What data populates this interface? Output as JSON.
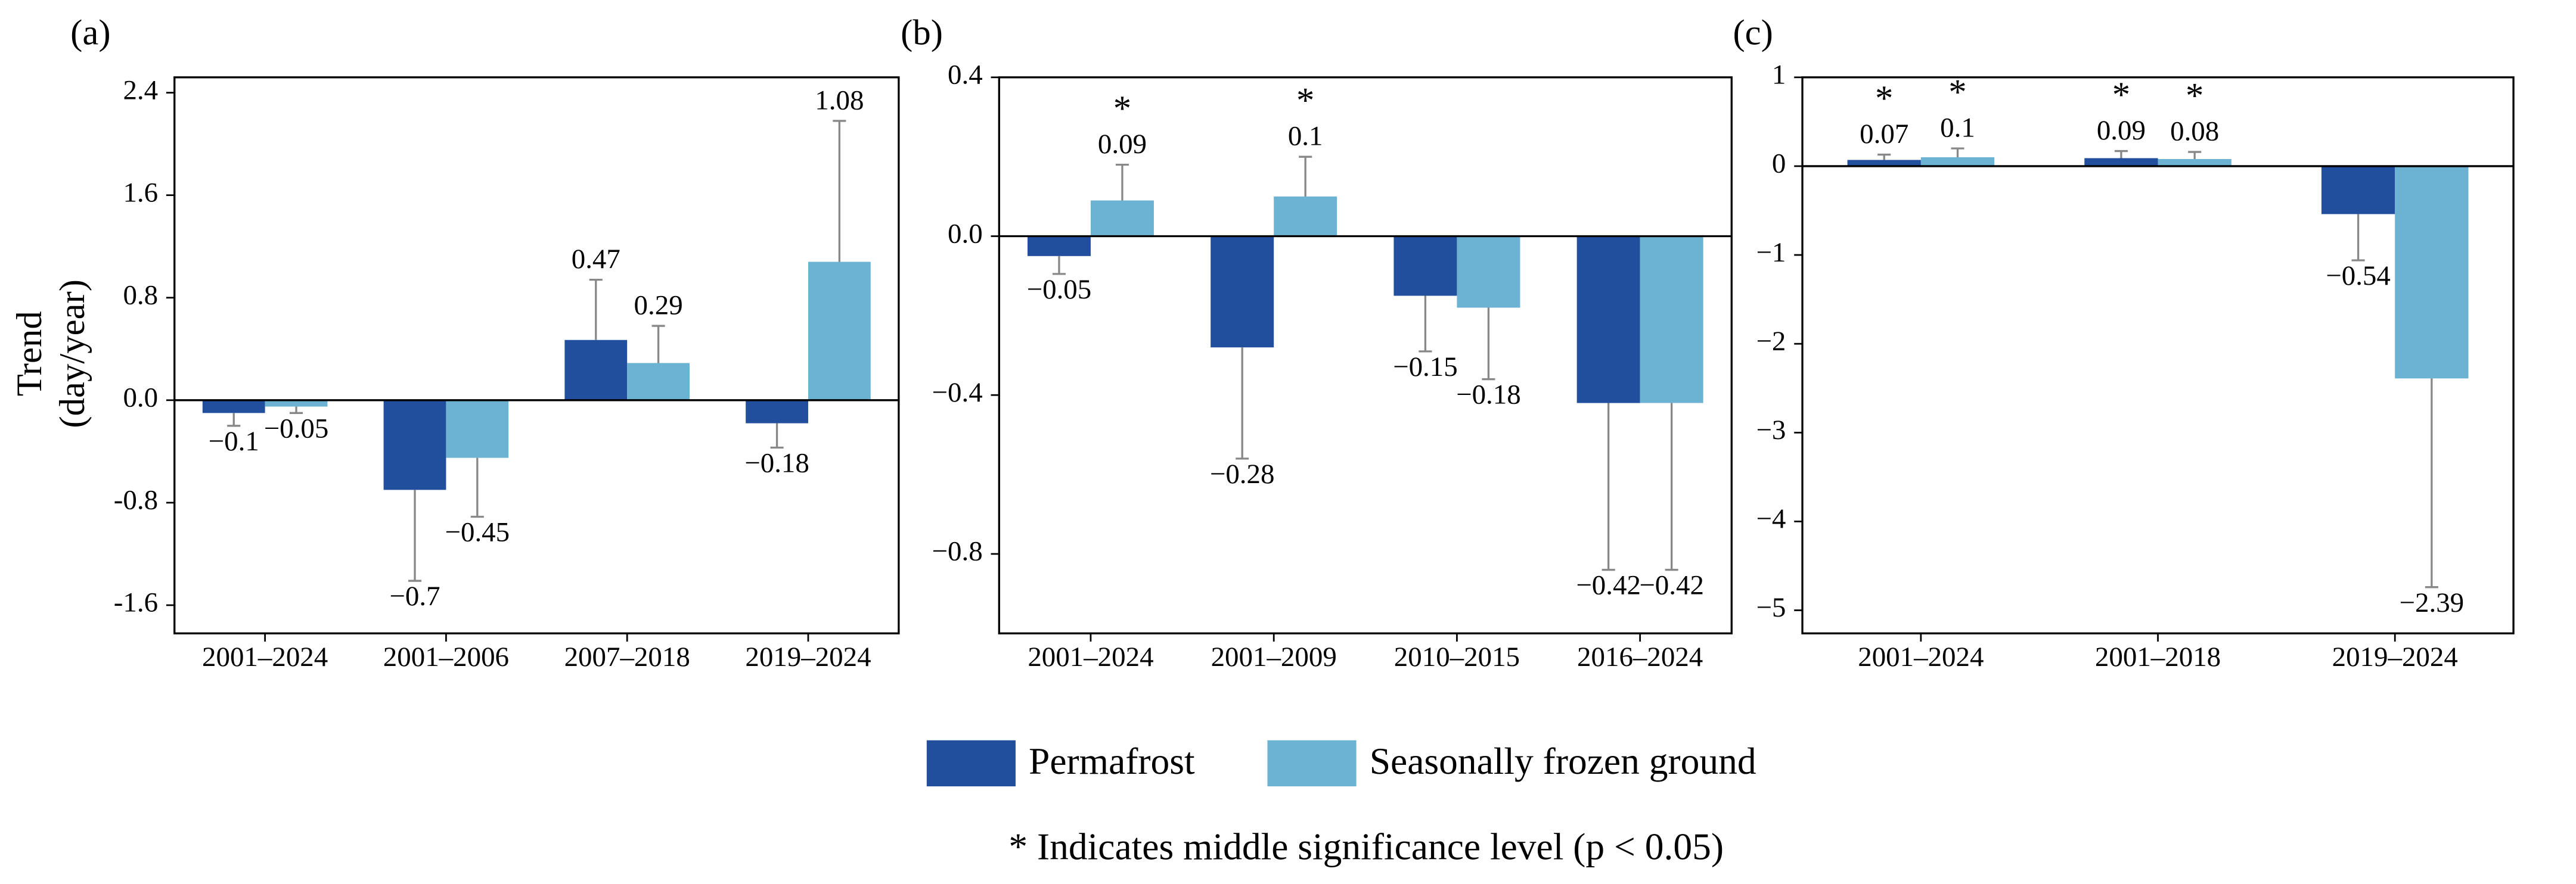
{
  "chart_data": [
    {
      "type": "bar",
      "panel_label": "(a)",
      "y_label": [
        "Trend",
        "(day/year)"
      ],
      "categories": [
        "2001–2024",
        "2001–2006",
        "2007–2018",
        "2019–2024"
      ],
      "ylim": [
        -1.82,
        2.52
      ],
      "yticks": [
        {
          "value": -1.6,
          "label": "-1.6"
        },
        {
          "value": -0.8,
          "label": "-0.8"
        },
        {
          "value": 0,
          "label": "0.0"
        },
        0.8,
        1.6,
        2.4
      ],
      "series": [
        {
          "name": "Permafrost",
          "color": "#214f9e",
          "values": [
            -0.1,
            -0.7,
            0.47,
            -0.18
          ],
          "errors": [
            0.1,
            0.71,
            0.47,
            0.19
          ],
          "value_labels": [
            "−0.1",
            "−0.7",
            "0.47",
            "−0.18"
          ],
          "significance_marks": [
            null,
            null,
            null,
            null
          ]
        },
        {
          "name": "Seasonally frozen ground",
          "color": "#6cb3d3",
          "values": [
            -0.05,
            -0.45,
            0.29,
            1.08
          ],
          "errors": [
            0.05,
            0.46,
            0.29,
            1.1
          ],
          "value_labels": [
            "−0.05",
            "−0.45",
            "0.29",
            "1.08"
          ],
          "significance_marks": [
            null,
            null,
            null,
            null
          ]
        }
      ]
    },
    {
      "type": "bar",
      "panel_label": "(b)",
      "categories": [
        "2001–2024",
        "2001–2009",
        "2010–2015",
        "2016–2024"
      ],
      "ylim": [
        -1.0,
        0.4
      ],
      "yticks": [
        {
          "value": -0.8,
          "label": "−0.8"
        },
        {
          "value": -0.4,
          "label": "−0.4"
        },
        {
          "value": 0,
          "label": "0.0"
        },
        0.4
      ],
      "series": [
        {
          "name": "Permafrost",
          "color": "#214f9e",
          "values": [
            -0.05,
            -0.28,
            -0.15,
            -0.42
          ],
          "errors": [
            0.045,
            0.28,
            0.14,
            0.42
          ],
          "value_labels": [
            "−0.05",
            "−0.28",
            "−0.15",
            "−0.42"
          ],
          "significance_marks": [
            null,
            null,
            null,
            null
          ]
        },
        {
          "name": "Seasonally frozen ground",
          "color": "#6cb3d3",
          "values": [
            0.09,
            0.1,
            -0.18,
            -0.42
          ],
          "errors": [
            0.09,
            0.1,
            0.18,
            0.42
          ],
          "value_labels": [
            "0.09",
            "0.1",
            "−0.18",
            "−0.42"
          ],
          "significance_marks": [
            "*",
            "*",
            null,
            null
          ]
        }
      ]
    },
    {
      "type": "bar",
      "panel_label": "(c)",
      "categories": [
        "2001–2024",
        "2001–2018",
        "2019–2024"
      ],
      "ylim": [
        -5.26,
        1
      ],
      "yticks": [
        {
          "value": -5,
          "label": "−5"
        },
        {
          "value": -4,
          "label": "−4"
        },
        {
          "value": -3,
          "label": "−3"
        },
        {
          "value": -2,
          "label": "−2"
        },
        {
          "value": -1,
          "label": "−1"
        },
        0,
        1
      ],
      "series": [
        {
          "name": "Permafrost",
          "color": "#214f9e",
          "values": [
            0.07,
            0.09,
            -0.54
          ],
          "errors": [
            0.06,
            0.08,
            0.52
          ],
          "value_labels": [
            "0.07",
            "0.09",
            "−0.54"
          ],
          "significance_marks": [
            "*",
            "*",
            null
          ]
        },
        {
          "name": "Seasonally frozen ground",
          "color": "#6cb3d3",
          "values": [
            0.1,
            0.08,
            -2.39
          ],
          "errors": [
            0.1,
            0.08,
            2.35
          ],
          "value_labels": [
            "0.1",
            "0.08",
            "−2.39"
          ],
          "significance_marks": [
            "*",
            "*",
            null
          ]
        }
      ]
    }
  ],
  "note": "* Indicates middle significance level (p < 0.05)"
}
